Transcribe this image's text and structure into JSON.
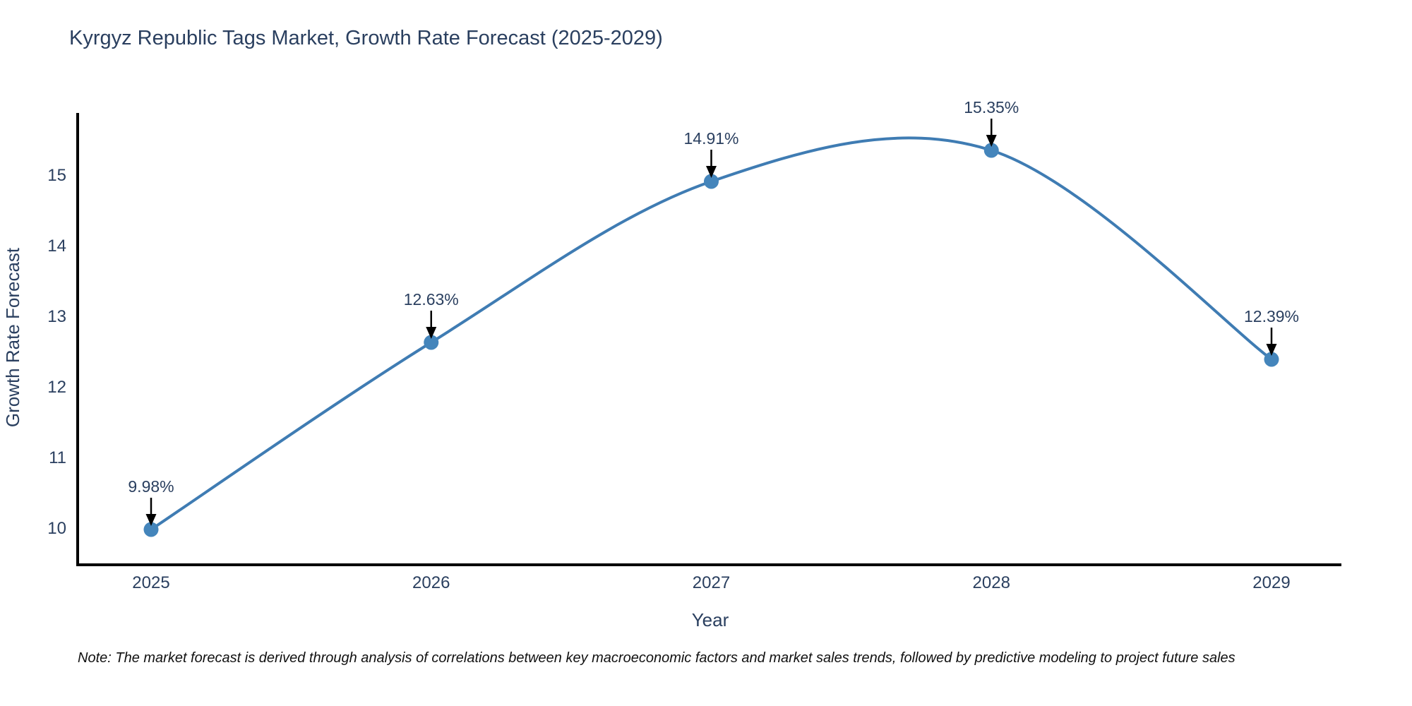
{
  "title": "Kyrgyz Republic Tags Market, Growth Rate Forecast (2025-2029)",
  "note": "Note: The market forecast is derived through analysis of correlations between key macroeconomic factors and market sales trends, followed by predictive modeling to project future sales",
  "chart_data": {
    "type": "line",
    "title": "Kyrgyz Republic Tags Market, Growth Rate Forecast (2025-2029)",
    "xlabel": "Year",
    "ylabel": "Growth Rate Forecast",
    "categories": [
      "2025",
      "2026",
      "2027",
      "2028",
      "2029"
    ],
    "series": [
      {
        "name": "Growth Rate Forecast",
        "values": [
          9.98,
          12.63,
          14.91,
          15.35,
          12.39
        ],
        "point_labels": [
          "9.98%",
          "12.63%",
          "14.91%",
          "15.35%",
          "12.39%"
        ]
      }
    ],
    "y_ticks": [
      10,
      11,
      12,
      13,
      14,
      15
    ],
    "ylim": [
      9.48,
      15.88
    ],
    "line_shape": "spline",
    "grid": false,
    "legend_position": "none",
    "marker": "circle",
    "annotations": "value labels with black down arrows above each point",
    "colors": {
      "line": "#3f7cb3",
      "marker": "#4485bb",
      "arrow": "#000000",
      "text": "#2a3f5f",
      "axis": "#000000",
      "note_text": "#111111",
      "background": "#ffffff"
    }
  }
}
